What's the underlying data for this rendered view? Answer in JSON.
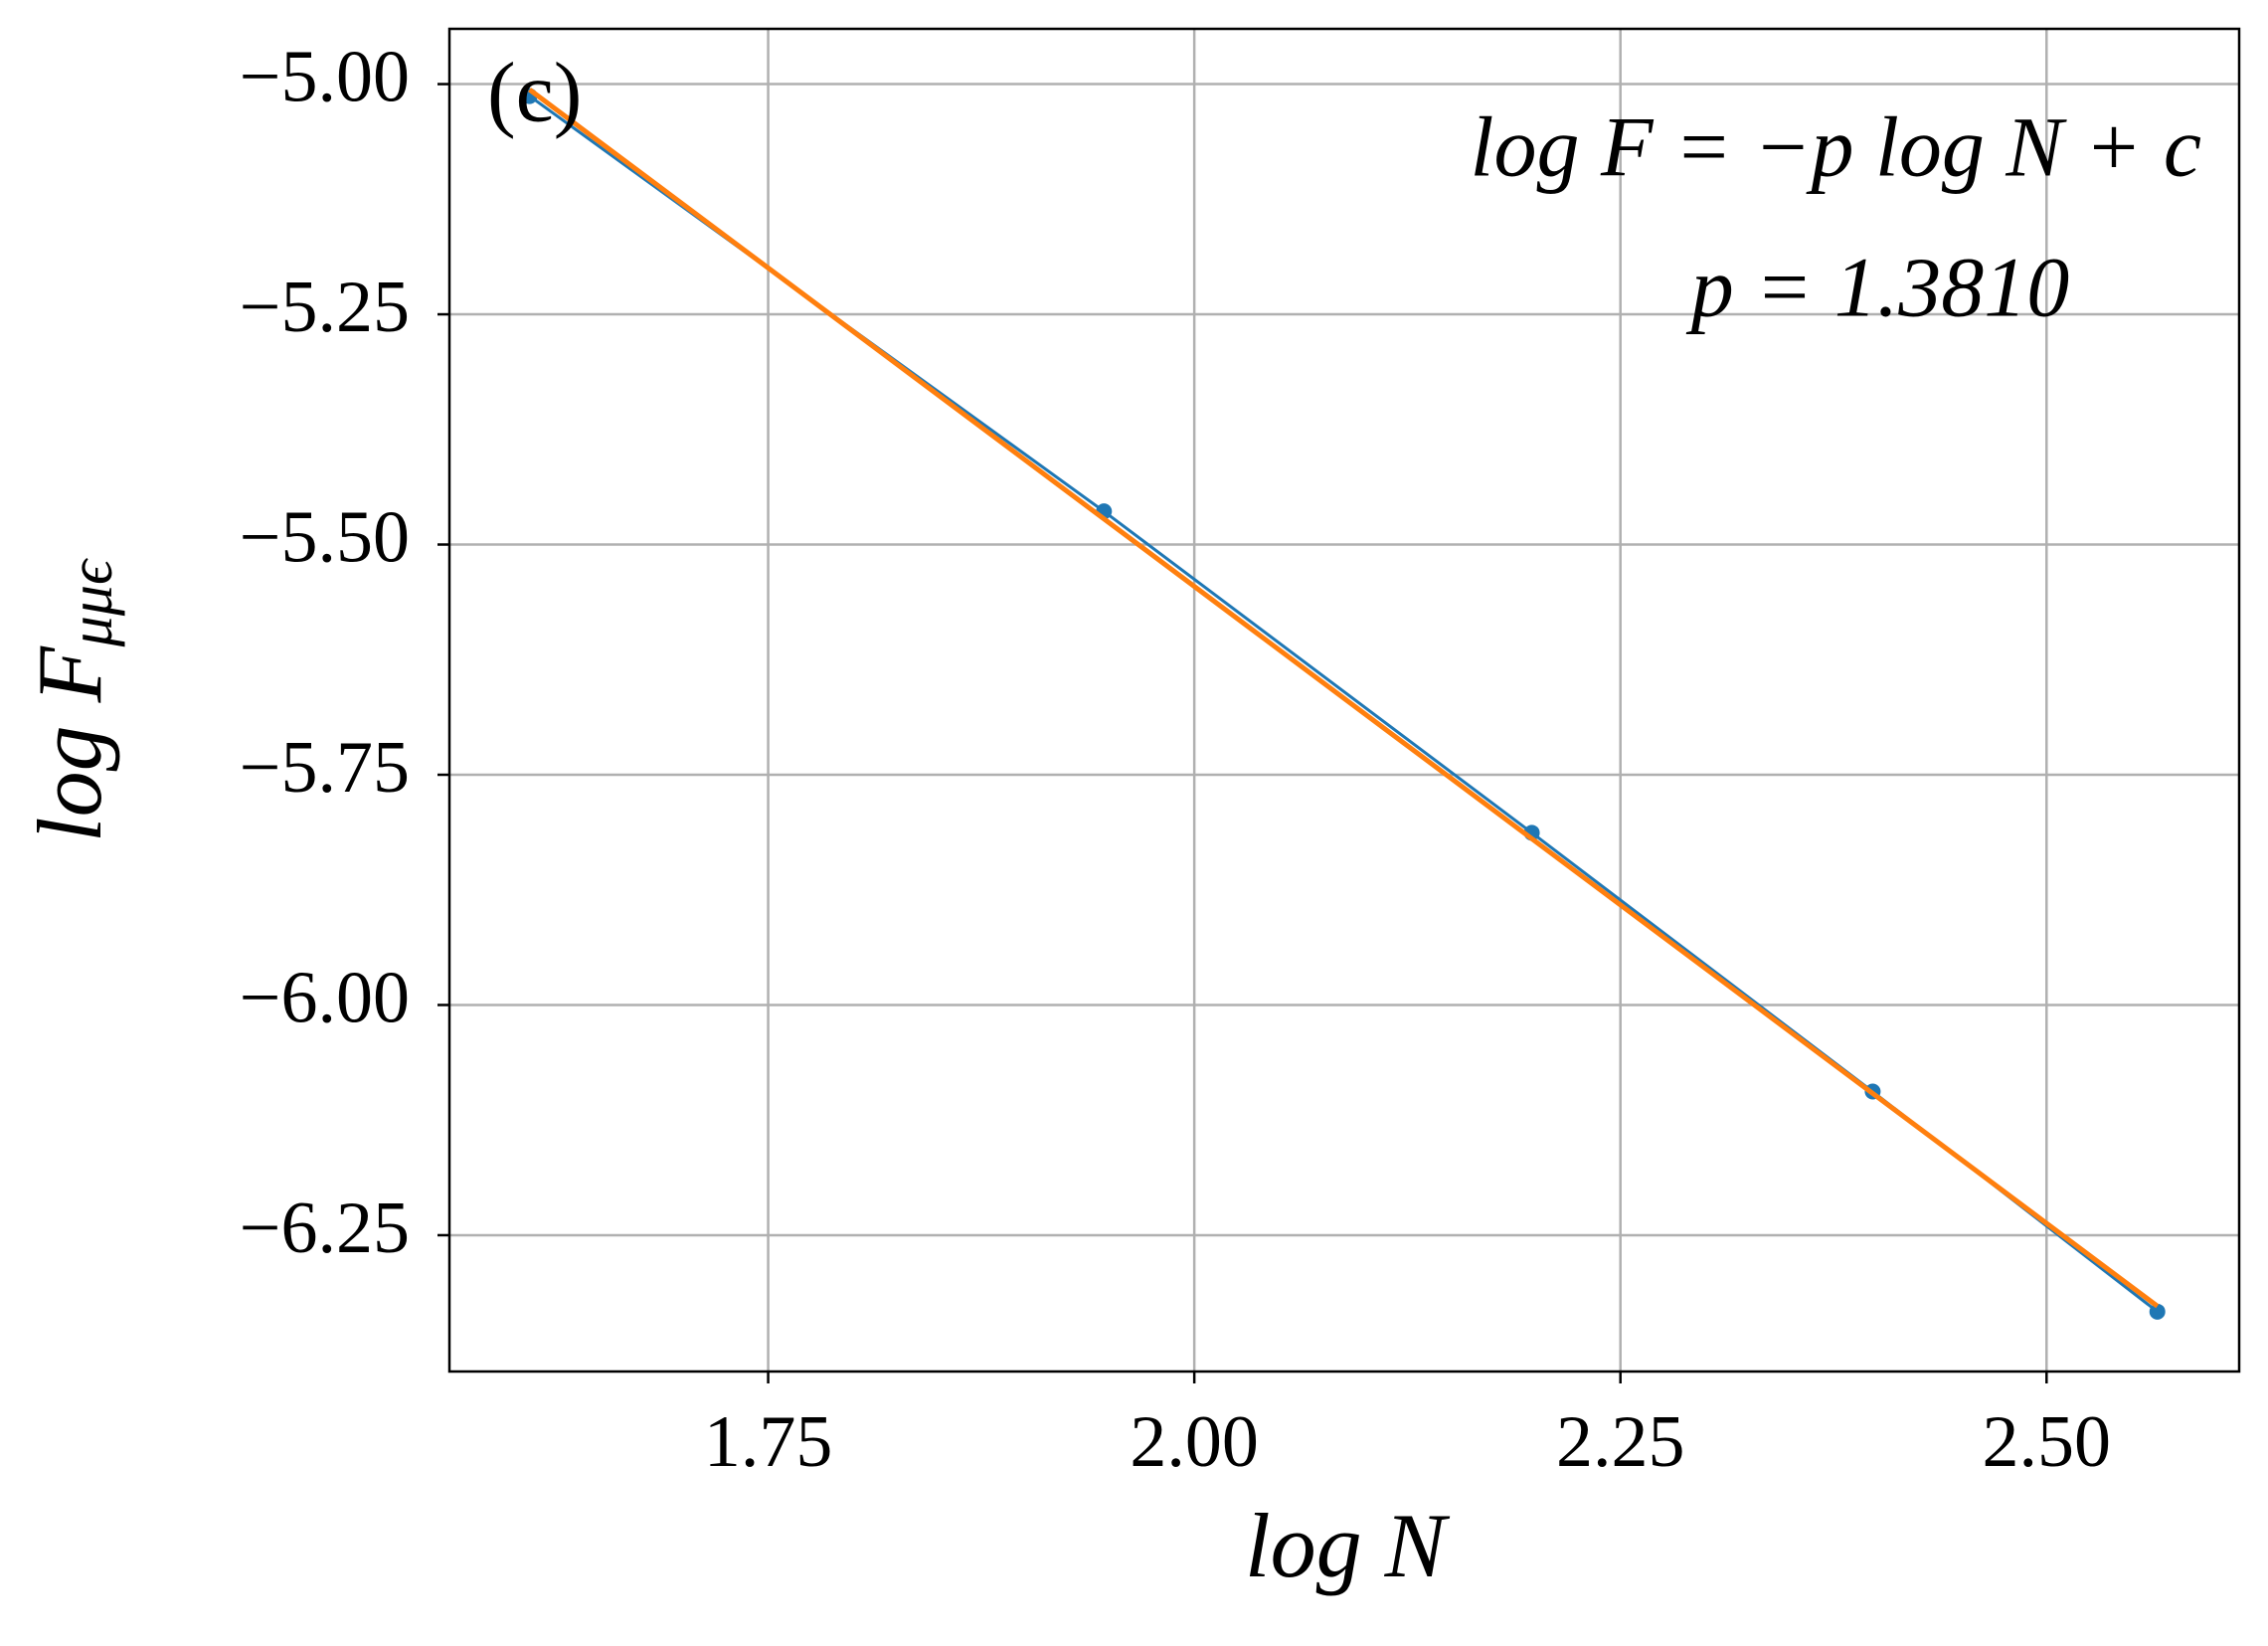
{
  "chart_data": {
    "type": "line",
    "xlabel": "log N",
    "ylabel": {
      "main": "log F",
      "sub": "μμϵ"
    },
    "annotations": [
      "(c)",
      "log F = −p log N + c",
      "p = 1.3810"
    ],
    "x": [
      1.61,
      1.947,
      2.198,
      2.398,
      2.565
    ],
    "series": [
      {
        "color": "#1f77b4",
        "marker": "o",
        "x": [
          1.61,
          1.947,
          2.198,
          2.398,
          2.565
        ],
        "values": [
          -5.013,
          -5.464,
          -5.813,
          -6.094,
          -6.333
        ]
      },
      {
        "color": "#ff7f0e",
        "marker": "none",
        "x": [
          1.61,
          2.565
        ],
        "values": [
          -5.006,
          -6.327
        ]
      }
    ],
    "xlim": [
      1.563,
      2.613
    ],
    "ylim": [
      -6.398,
      -4.94
    ],
    "xticks": [
      1.75,
      {
        "value": 2,
        "label": "2.00"
      },
      2.25,
      {
        "value": 2.5,
        "label": "2.50"
      }
    ],
    "yticks": [
      {
        "value": -5,
        "label": "−5.00"
      },
      {
        "value": -5.25,
        "label": "−5.25"
      },
      {
        "value": -5.5,
        "label": "−5.50"
      },
      {
        "value": -5.75,
        "label": "−5.75"
      },
      {
        "value": -6,
        "label": "−6.00"
      },
      {
        "value": -6.25,
        "label": "−6.25"
      }
    ],
    "grid": true
  }
}
